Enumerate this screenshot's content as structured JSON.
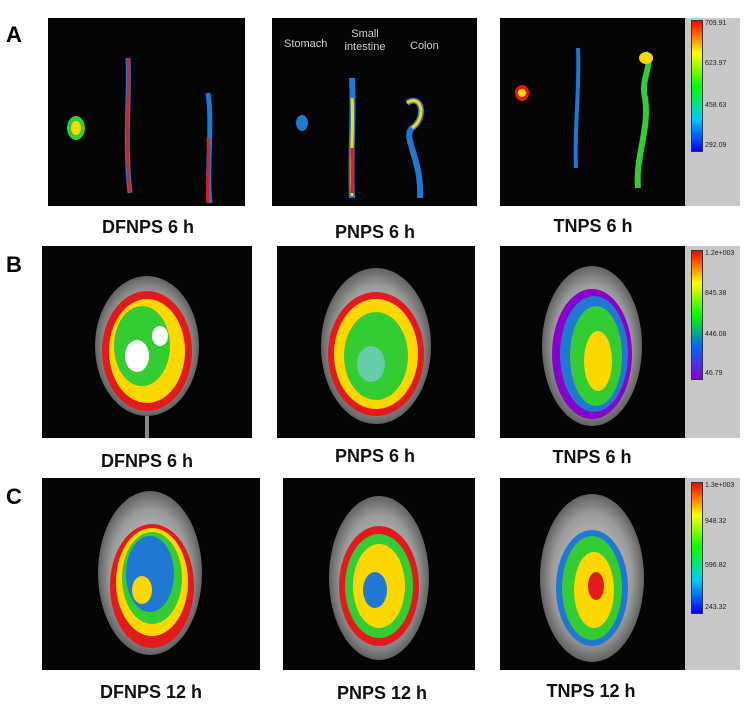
{
  "rows": [
    {
      "letter": "A",
      "captions": [
        "DFNPS 6 h",
        "PNPS 6 h",
        "TNPS 6 h"
      ],
      "organ_labels": [
        "Stomach",
        "Small intestine",
        "Colon"
      ],
      "scale_ticks": [
        "709.91",
        "623.97",
        "458.63",
        "292.09"
      ]
    },
    {
      "letter": "B",
      "captions": [
        "DFNPS 6 h",
        "PNPS 6 h",
        "TNPS 6 h"
      ],
      "scale_ticks": [
        "1.2e+003",
        "845.38",
        "446.08",
        "46.79"
      ]
    },
    {
      "letter": "C",
      "captions": [
        "DFNPS 12 h",
        "PNPS 12 h",
        "TNPS 12 h"
      ],
      "scale_ticks": [
        "1.3e+003",
        "948.32",
        "596.82",
        "243.32"
      ]
    }
  ],
  "colors": {
    "heat_high": "#e31a1c",
    "heat_mid_high": "#ffd700",
    "heat_mid": "#33cc33",
    "heat_low": "#1f78d1",
    "background": "#050505",
    "scale_panel": "#c8c8c8"
  }
}
